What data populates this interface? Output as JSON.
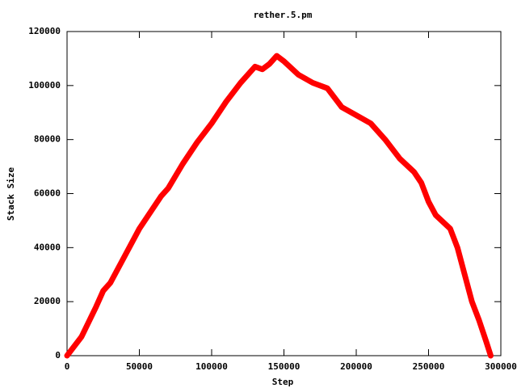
{
  "chart_data": {
    "type": "line",
    "title": "rether.5.pm",
    "x_label": "Step",
    "y_label": "Stack Size",
    "x": [
      0,
      10000,
      20000,
      25000,
      30000,
      40000,
      50000,
      60000,
      65000,
      70000,
      80000,
      90000,
      100000,
      110000,
      120000,
      130000,
      135000,
      140000,
      145000,
      150000,
      160000,
      170000,
      180000,
      190000,
      200000,
      210000,
      220000,
      230000,
      240000,
      245000,
      250000,
      255000,
      265000,
      270000,
      275000,
      280000,
      285000,
      290000,
      293000
    ],
    "series": [
      {
        "color": "#ff0000",
        "values": [
          0,
          7000,
          18000,
          24000,
          27000,
          37000,
          47000,
          55000,
          59000,
          62000,
          71000,
          79000,
          86000,
          94000,
          101000,
          107000,
          106000,
          108000,
          111000,
          109000,
          104000,
          101000,
          99000,
          92000,
          89000,
          86000,
          80000,
          73000,
          68000,
          64000,
          57000,
          52000,
          47000,
          40000,
          30000,
          20000,
          13000,
          5000,
          0
        ]
      }
    ],
    "xlim": [
      0,
      300000
    ],
    "ylim": [
      0,
      120000
    ],
    "xticks": [
      0,
      50000,
      100000,
      150000,
      200000,
      250000,
      300000
    ],
    "yticks": [
      0,
      20000,
      40000,
      60000,
      80000,
      100000,
      120000
    ]
  }
}
